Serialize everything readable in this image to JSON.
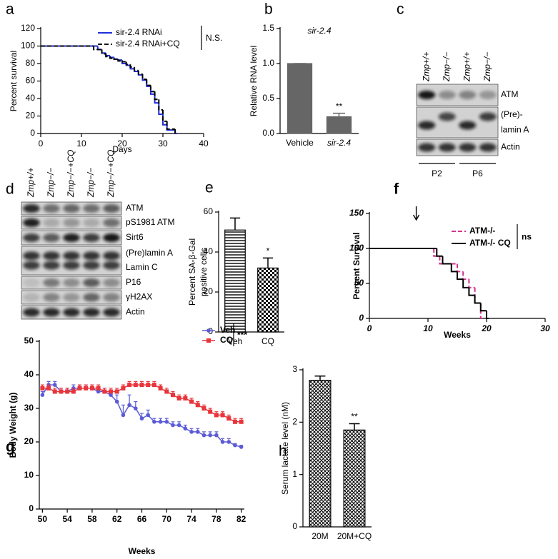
{
  "chart_data": [
    {
      "panel_label": "a",
      "type": "step",
      "xlabel": "Days",
      "ylabel": "Percent survival",
      "xlim": [
        0,
        40
      ],
      "xticks": [
        0,
        10,
        20,
        30,
        40
      ],
      "ylim": [
        0,
        120
      ],
      "yticks": [
        0,
        20,
        40,
        60,
        80,
        100,
        120
      ],
      "legend_note": "N.S.",
      "legend_position": "upper right",
      "series": [
        {
          "name": "sir-2.4 RNAi",
          "color": "#1f2fd6",
          "dash": false,
          "x": [
            0,
            14,
            15,
            16,
            17,
            18,
            19,
            20,
            21,
            22,
            23,
            24,
            25,
            26,
            27,
            28,
            29,
            30,
            31,
            33
          ],
          "values": [
            100,
            96,
            92,
            89,
            87,
            85,
            84,
            80,
            78,
            74,
            71,
            67,
            61,
            54,
            45,
            35,
            22,
            10,
            4,
            0
          ]
        },
        {
          "name": "sir-2.4 RNAi+CQ",
          "color": "#000000",
          "dash": true,
          "x": [
            0,
            13,
            15,
            16,
            17,
            18,
            19,
            20,
            21,
            22,
            23,
            24,
            25,
            26,
            27,
            28,
            29,
            30,
            31,
            33
          ],
          "values": [
            100,
            96,
            91,
            88,
            86,
            85,
            83,
            82,
            79,
            76,
            72,
            68,
            62,
            55,
            48,
            39,
            27,
            14,
            5,
            0
          ]
        }
      ]
    },
    {
      "panel_label": "b",
      "type": "bar",
      "title": "sir-2.4",
      "ylabel": "Relative RNA level",
      "categories": [
        "Vehicle",
        "sir-2.4"
      ],
      "values": [
        1.0,
        0.24
      ],
      "errors": [
        0,
        0.05
      ],
      "significance": "**",
      "color": "#666666",
      "pattern": "solid",
      "ylim": [
        0,
        1.5
      ],
      "yticks": [
        {
          "value": 0,
          "label": "0.0"
        },
        {
          "value": 0.5,
          "label": "0.5"
        },
        {
          "value": 1,
          "label": "1.0"
        },
        {
          "value": 1.5,
          "label": "1.5"
        }
      ]
    },
    {
      "panel_label": "e",
      "type": "bar",
      "ylabel": [
        "Percent SA-β-Gal",
        "positive cells"
      ],
      "categories": [
        "Veh",
        "CQ"
      ],
      "values": [
        51,
        32
      ],
      "errors": [
        6,
        5
      ],
      "significance": "*",
      "color": "#000000",
      "pattern": [
        "hlines",
        "checker"
      ],
      "ylim": [
        0,
        60
      ],
      "yticks": [
        0,
        20,
        40,
        60
      ]
    },
    {
      "panel_label": "f",
      "type": "step",
      "xlabel": "Weeks",
      "ylabel": "Percent Survival",
      "xlim": [
        0,
        30
      ],
      "xticks": [
        0,
        10,
        20,
        30
      ],
      "ylim": [
        0,
        150
      ],
      "yticks": [
        0,
        50,
        100,
        150
      ],
      "legend_note": "ns",
      "legend_position": "upper right",
      "arrow_at": 8,
      "series": [
        {
          "name": "ATM-/-",
          "color": "#d6338f",
          "dash": true,
          "x": [
            0,
            11,
            12,
            15,
            16,
            17,
            18,
            19
          ],
          "values": [
            100,
            89,
            78,
            67,
            56,
            44,
            22,
            0
          ]
        },
        {
          "name": "ATM-/- CQ",
          "color": "#000000",
          "dash": false,
          "x": [
            0,
            11.5,
            12.5,
            14,
            15,
            16,
            17,
            18,
            19,
            20
          ],
          "values": [
            100,
            89,
            78,
            67,
            56,
            44,
            33,
            22,
            11,
            0
          ]
        }
      ]
    },
    {
      "panel_label": "g",
      "type": "line",
      "xlabel": "Weeks",
      "ylabel": "Body Weight (g)",
      "xlim": [
        49.5,
        82.5
      ],
      "xticks": [
        50,
        54,
        58,
        62,
        66,
        70,
        74,
        78,
        82
      ],
      "ylim": [
        0,
        50
      ],
      "yticks": [
        0,
        10,
        20,
        30,
        40,
        50
      ],
      "legend_note": "***",
      "legend_position": "upper right",
      "x": [
        50,
        51,
        52,
        53,
        54,
        55,
        56,
        57,
        58,
        59,
        60,
        61,
        62,
        63,
        64,
        65,
        66,
        67,
        68,
        69,
        70,
        71,
        72,
        73,
        74,
        75,
        76,
        77,
        78,
        79,
        80,
        81,
        82
      ],
      "series": [
        {
          "name": "Veh",
          "color": "#5b5bd6",
          "marker": "circle",
          "values": [
            34,
            37,
            37,
            35,
            35,
            36,
            36,
            36,
            36,
            35,
            35,
            34,
            32,
            28,
            31,
            30,
            27,
            28,
            26,
            26,
            26,
            25,
            25,
            24,
            23,
            23,
            22,
            22,
            22,
            20,
            20,
            19,
            18.5
          ],
          "errors": [
            1,
            1,
            1,
            1,
            1,
            1,
            1,
            1,
            1,
            1,
            1,
            1,
            2,
            3,
            3,
            2,
            1.5,
            1.5,
            1,
            1,
            1,
            1,
            1,
            1,
            1,
            1,
            1,
            1,
            1,
            1,
            1,
            0.5,
            0.5
          ]
        },
        {
          "name": "CQ",
          "color": "#e8343a",
          "marker": "square",
          "values": [
            36,
            36,
            35,
            35,
            35,
            35,
            36,
            36,
            36,
            36,
            35,
            35,
            35,
            36,
            37,
            37,
            37,
            37,
            37,
            36,
            35,
            34,
            33,
            33,
            32,
            31,
            30,
            29,
            28,
            28,
            27,
            26,
            26
          ],
          "errors": [
            1,
            1,
            1,
            1,
            1,
            1,
            1,
            1,
            1,
            1,
            1,
            1,
            1,
            1,
            1,
            1,
            1,
            1,
            1,
            1,
            1,
            1,
            1,
            1,
            1,
            1,
            1,
            1,
            1,
            1,
            1,
            1,
            1
          ]
        }
      ]
    },
    {
      "panel_label": "h",
      "type": "bar",
      "ylabel": "Serum lactate level (nM)",
      "categories": [
        "20M",
        "20M+CQ"
      ],
      "values": [
        2.8,
        1.85
      ],
      "errors": [
        0.08,
        0.12
      ],
      "significance": "**",
      "color": "#000000",
      "pattern": "crosshatch",
      "ylim": [
        0,
        3
      ],
      "yticks": [
        0,
        1,
        2,
        3
      ]
    }
  ],
  "blots": [
    {
      "panel_label": "c",
      "lanes": [
        "Zmp+/+",
        "Zmp−/−",
        "Zmp+/+",
        "Zmp−/−"
      ],
      "rows": [
        [
          "ATM"
        ],
        [
          "(Pre)-",
          "lamin A"
        ],
        [
          "Actin"
        ]
      ],
      "groups": [
        "P2",
        "P6"
      ]
    },
    {
      "panel_label": "d",
      "lanes": [
        "Zmp+/+",
        "Zmp−/−",
        "Zmp−/−+CQ",
        "Zmp−/−",
        "Zmp−/−+CQ"
      ],
      "rows": [
        [
          "ATM"
        ],
        [
          "pS1981 ATM"
        ],
        [
          "Sirt6"
        ],
        [
          "(Pre)lamin A",
          "Lamin C"
        ],
        [
          "P16"
        ],
        [
          "γH2AX"
        ],
        [
          "Actin"
        ]
      ]
    }
  ]
}
